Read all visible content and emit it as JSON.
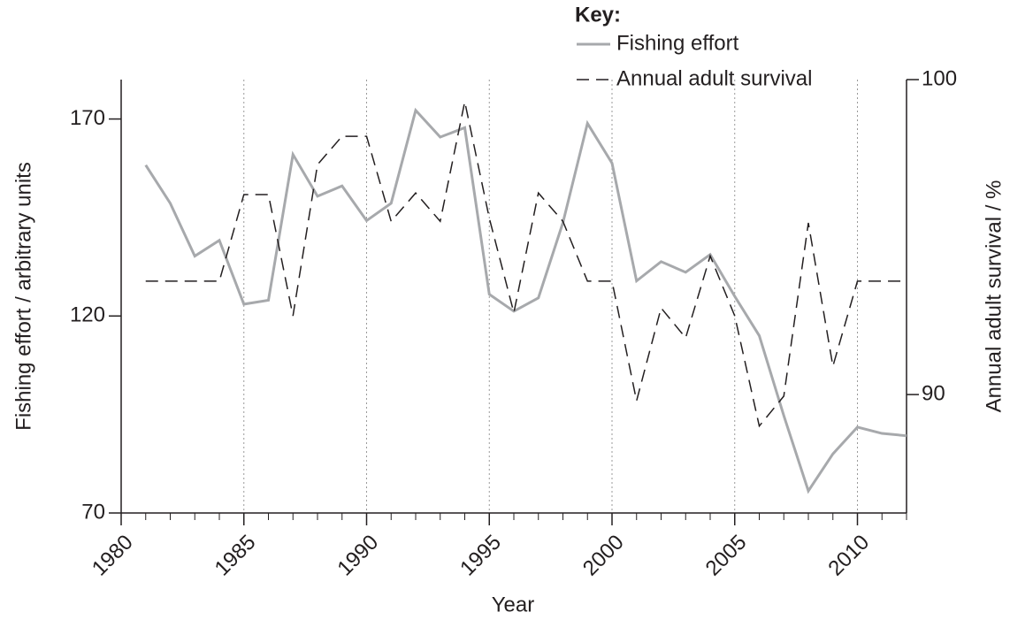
{
  "chart_data": {
    "type": "line",
    "legend_title": "Key:",
    "x_label": "Year",
    "y_label": "Fishing effort / arbitrary units",
    "y2_label": "Annual adult survival / %",
    "x": [
      1981,
      1982,
      1983,
      1984,
      1985,
      1986,
      1987,
      1988,
      1989,
      1990,
      1991,
      1992,
      1993,
      1994,
      1995,
      1996,
      1997,
      1998,
      1999,
      2000,
      2001,
      2002,
      2003,
      2004,
      2005,
      2006,
      2007,
      2008,
      2009,
      2010,
      2011,
      2012
    ],
    "series": [
      {
        "name": "Fishing effort",
        "color": "#a7a9ac",
        "dash": false,
        "values": [
          158.3,
          148.6,
          135.2,
          139.2,
          123,
          124,
          161,
          150.4,
          153,
          144.2,
          148.6,
          172.2,
          165.4,
          167.8,
          125.5,
          121.2,
          124.6,
          143.7,
          168.9,
          158.8,
          128.9,
          133.8,
          131.1,
          135.6,
          125,
          115,
          94.7,
          75.6,
          85,
          91.8,
          90.2,
          89.6
        ]
      },
      {
        "name": "Annual adult survival",
        "color": "#231f20",
        "dash": true,
        "axis": "y2",
        "values": [
          93.6,
          93.6,
          93.6,
          93.6,
          96.35,
          96.35,
          92.5,
          97.3,
          98.2,
          98.2,
          95.5,
          96.4,
          95.5,
          99.3,
          95.6,
          92.6,
          96.4,
          95.5,
          93.6,
          93.6,
          89.8,
          92.75,
          91.8,
          94.4,
          92.5,
          89,
          89.95,
          95.45,
          90.9,
          93.6,
          93.6,
          93.6
        ]
      }
    ],
    "xlim": [
      1980,
      2012
    ],
    "xticks": [
      1980,
      1985,
      1990,
      1995,
      2000,
      2005,
      2010
    ],
    "ylim": [
      70,
      180
    ],
    "yticks": [
      70,
      120,
      170
    ],
    "y2lim": [
      86.24,
      100
    ],
    "y2ticks": [
      90,
      100
    ],
    "grid": "x"
  }
}
